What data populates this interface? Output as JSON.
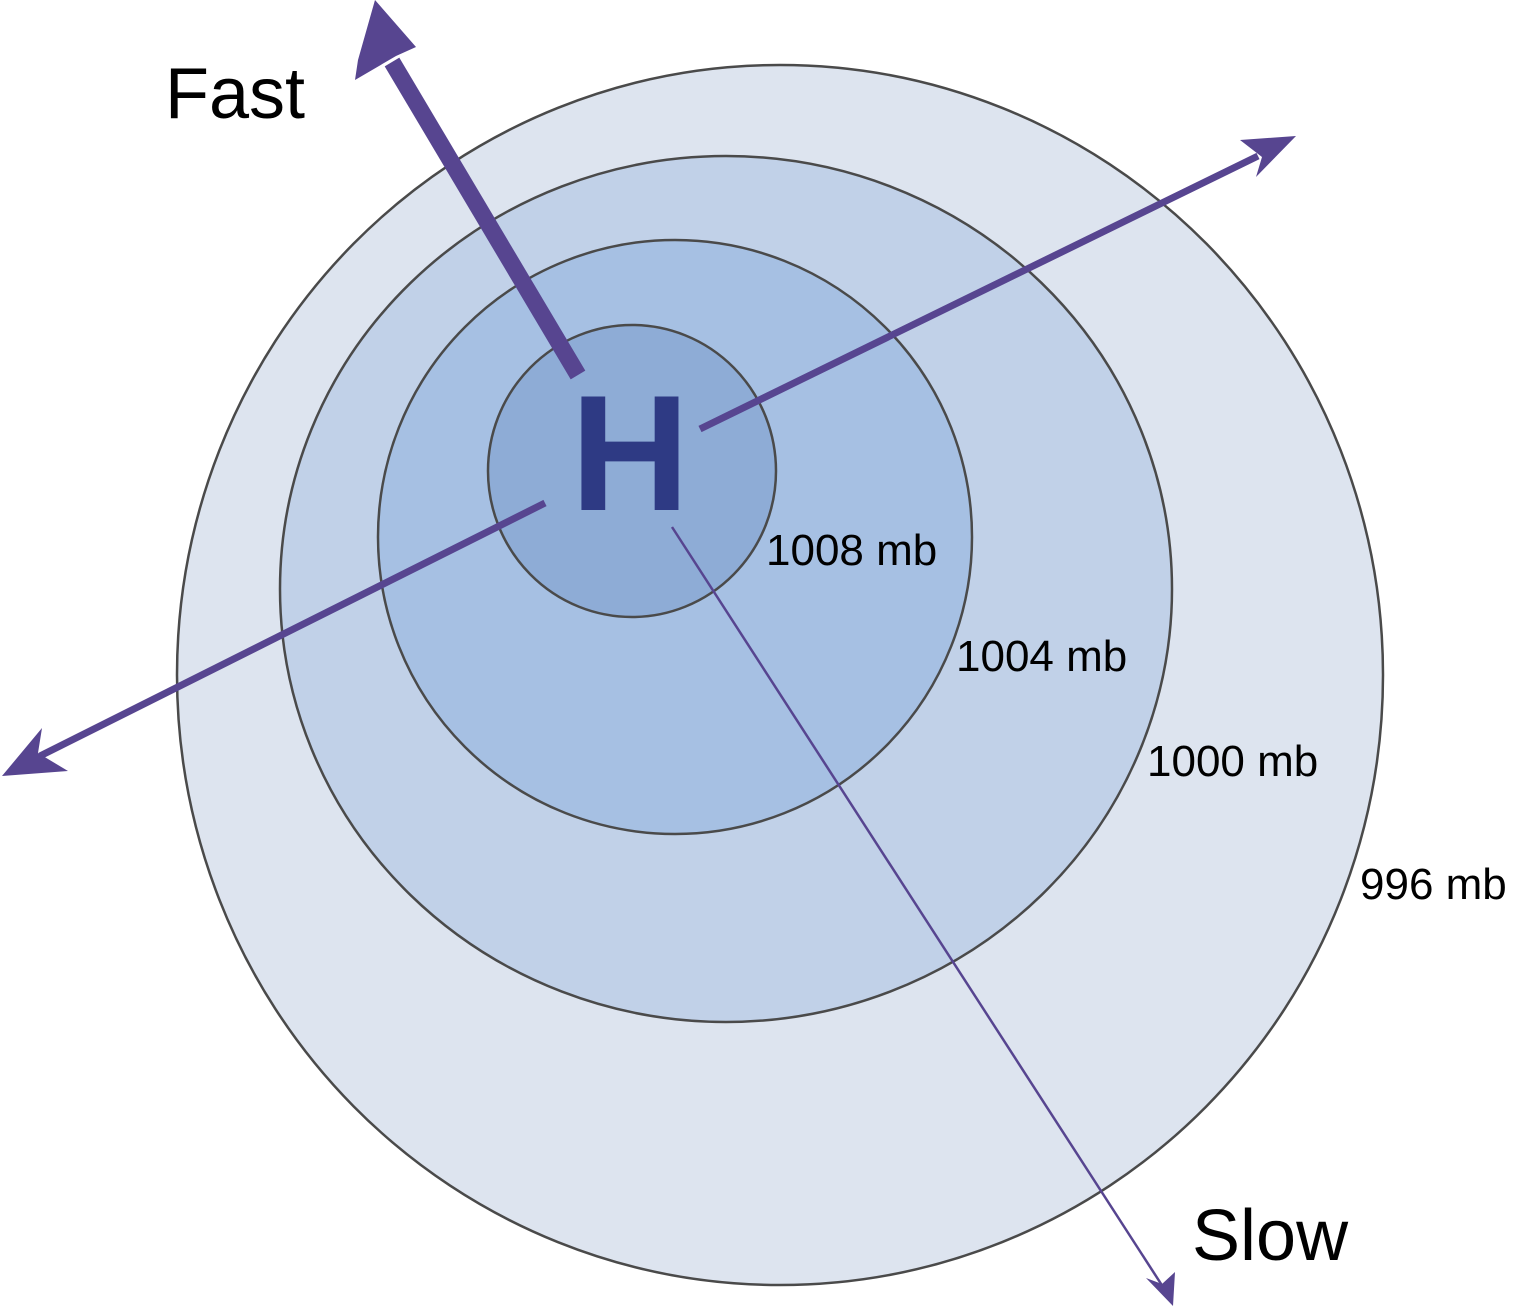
{
  "center_label": "H",
  "isobars": [
    {
      "label": "996 mb",
      "fill": "#dde4ef"
    },
    {
      "label": "1000 mb",
      "fill": "#c1d1e8"
    },
    {
      "label": "1004 mb",
      "fill": "#a6c0e3"
    },
    {
      "label": "1008 mb",
      "fill": "#8eacd6"
    }
  ],
  "arrows": {
    "fast_label": "Fast",
    "slow_label": "Slow"
  },
  "colors": {
    "arrow": "#574590",
    "center_label": "#2e3a84",
    "isobar_line": "#4a4a4a"
  }
}
